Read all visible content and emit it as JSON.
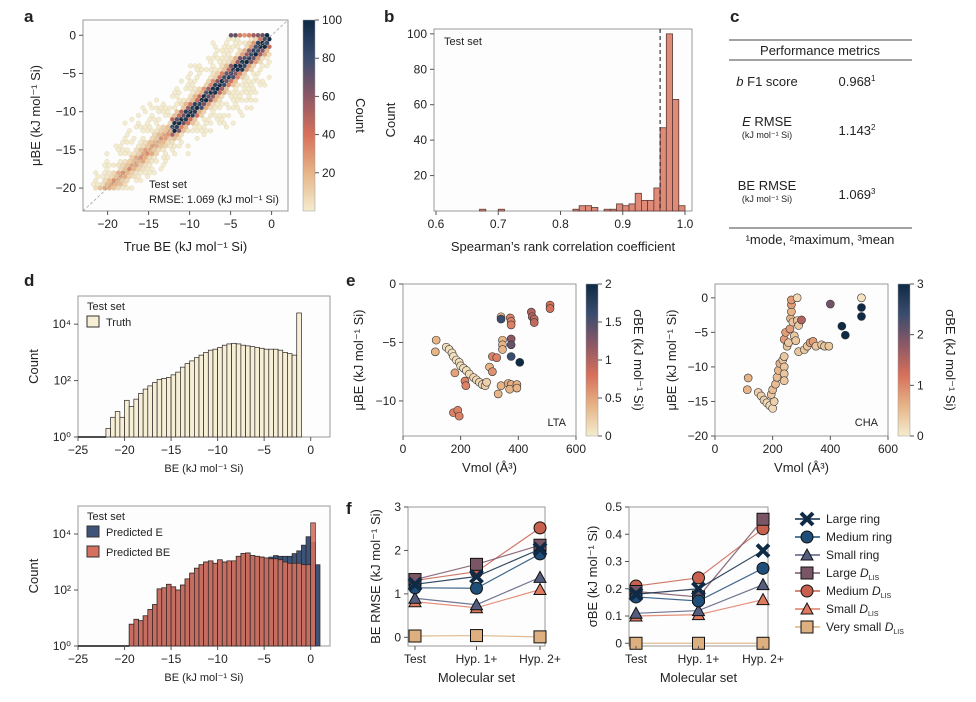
{
  "panel_labels": {
    "a": "a",
    "b": "b",
    "c": "c",
    "d": "d",
    "e": "e",
    "f": "f"
  },
  "colors": {
    "navy": "#0f2a45",
    "blue": "#1f4e79",
    "slate": "#565e80",
    "mauve": "#7a5566",
    "red": "#c8604f",
    "salmon": "#e07a5f",
    "tan": "#deb07f",
    "cream": "#f4eccf",
    "hist_edge": "#3a3030",
    "truth_fill": "#f6efd6"
  },
  "table": {
    "title": "Performance metrics",
    "rows": [
      {
        "label_italic": "b",
        "label": " F1 score",
        "sublabel": "",
        "value": "0.968",
        "sup": "1"
      },
      {
        "label_italic": "E",
        "label": "  RMSE",
        "sublabel": "(kJ mol⁻¹ Si)",
        "value": "1.143",
        "sup": "2"
      },
      {
        "label_italic": "",
        "label": "BE RMSE",
        "sublabel": "(kJ mol⁻¹ Si)",
        "value": "1.069",
        "sup": "3"
      }
    ],
    "footnote": "¹mode, ²maximum, ³mean"
  },
  "chart_data": [
    {
      "id": "a",
      "type": "heatmap",
      "subtype": "hexbin",
      "xlabel": "True BE (kJ mol⁻¹ Si)",
      "ylabel": "μBE (kJ mol⁻¹ Si)",
      "xlim": [
        -23,
        2
      ],
      "ylim": [
        -23,
        2
      ],
      "xticks": [
        -20,
        -15,
        -10,
        -5,
        0
      ],
      "yticks": [
        0,
        -5,
        -10,
        -15,
        -20
      ],
      "annotation": [
        "Test set",
        "RMSE: 1.069 (kJ mol⁻¹ Si)"
      ],
      "colorbar": {
        "label": "Count",
        "ticks": [
          20,
          40,
          60,
          80,
          100
        ],
        "range": [
          0,
          100
        ]
      },
      "diagonal": true,
      "density_ridge": {
        "x": [
          -20,
          -15,
          -12,
          -10,
          -7.5,
          -5,
          -2.5,
          0
        ],
        "y": [
          -19,
          -15,
          -12,
          -10,
          -7.5,
          -5,
          -2.5,
          0
        ],
        "peak_count": [
          5,
          20,
          80,
          100,
          100,
          100,
          100,
          100
        ]
      }
    },
    {
      "id": "b",
      "type": "bar",
      "subtype": "histogram",
      "xlabel": "Spearman’s rank correlation coefficient",
      "ylabel": "Count",
      "xlim": [
        0.6,
        1.0
      ],
      "ylim": [
        0,
        105
      ],
      "xticks": [
        0.6,
        0.7,
        0.8,
        0.9,
        1.0
      ],
      "yticks": [
        20,
        40,
        60,
        80,
        100
      ],
      "annotation": "Test set",
      "vline": 0.96,
      "bin_width": 0.01,
      "bins": [
        0.67,
        0.7,
        0.82,
        0.83,
        0.84,
        0.85,
        0.87,
        0.88,
        0.89,
        0.9,
        0.91,
        0.92,
        0.93,
        0.94,
        0.95,
        0.96,
        0.97,
        0.98,
        0.99
      ],
      "values": [
        1,
        1,
        1,
        3,
        3,
        2,
        1,
        1,
        4,
        3,
        4,
        10,
        6,
        6,
        13,
        47,
        100,
        63,
        3
      ]
    },
    {
      "id": "d-top",
      "type": "bar",
      "subtype": "histogram",
      "yscale": "log",
      "xlabel": "BE (kJ mol⁻¹ Si)",
      "ylabel": "Count",
      "xlim": [
        -25,
        1
      ],
      "ylim": [
        1,
        100000
      ],
      "xticks": [
        -25,
        -20,
        -15,
        -10,
        -5,
        0
      ],
      "yticks": [
        "10⁰",
        "10²",
        "10⁴"
      ],
      "legend": {
        "title": "Test set",
        "entries": [
          "Truth"
        ]
      },
      "bin_start": -22,
      "bin_width": 0.5,
      "series": [
        {
          "name": "Truth",
          "values": [
            2,
            5,
            8,
            5,
            20,
            12,
            22,
            35,
            50,
            65,
            85,
            110,
            120,
            130,
            160,
            200,
            300,
            400,
            500,
            650,
            800,
            1000,
            1200,
            1300,
            1500,
            1800,
            2000,
            2100,
            2000,
            1800,
            1700,
            1600,
            1500,
            1400,
            1300,
            1300,
            1300,
            1200,
            1000,
            900,
            800,
            25000
          ]
        }
      ]
    },
    {
      "id": "d-bottom",
      "type": "bar",
      "subtype": "histogram",
      "yscale": "log",
      "xlabel": "BE (kJ mol⁻¹ Si)",
      "ylabel": "Count",
      "xlim": [
        -25,
        1
      ],
      "ylim": [
        1,
        100000
      ],
      "xticks": [
        -25,
        -20,
        -15,
        -10,
        -5,
        0
      ],
      "yticks": [
        "10⁰",
        "10²",
        "10⁴"
      ],
      "legend": {
        "title": "Test set",
        "entries": [
          "Predicted E",
          "Predicted BE"
        ]
      },
      "bin_start": -19.5,
      "bin_width": 0.5,
      "series": [
        {
          "name": "Predicted E",
          "values": [
            6,
            9,
            8,
            12,
            20,
            30,
            110,
            120,
            160,
            130,
            100,
            150,
            250,
            400,
            600,
            800,
            1000,
            1100,
            900,
            1200,
            1000,
            1100,
            1100,
            1600,
            2000,
            2100,
            1700,
            1600,
            1500,
            1400,
            1500,
            1700,
            1600,
            1600,
            1600,
            2000,
            2500,
            4000,
            8000,
            5000,
            800
          ]
        },
        {
          "name": "Predicted BE",
          "values": [
            6,
            9,
            8,
            12,
            20,
            30,
            110,
            120,
            160,
            130,
            100,
            150,
            250,
            400,
            600,
            800,
            1000,
            1100,
            900,
            1200,
            1000,
            1100,
            1100,
            1600,
            2000,
            2100,
            1700,
            1600,
            1500,
            1400,
            1300,
            1300,
            1200,
            1000,
            900,
            900,
            900,
            800,
            800,
            25000,
            0
          ]
        }
      ]
    },
    {
      "id": "e-LTA",
      "type": "scatter",
      "annotation": "LTA",
      "xlabel": "Vmol (Å³)",
      "ylabel": "μBE (kJ mol⁻¹ Si)",
      "xlim": [
        0,
        600
      ],
      "ylim": [
        -13,
        0
      ],
      "xticks": [
        0,
        200,
        400,
        600
      ],
      "yticks": [
        0,
        -5,
        -10
      ],
      "colorbar": {
        "label": "σBE (kJ mol⁻¹ Si)",
        "range": [
          0,
          2.0
        ],
        "ticks": [
          0,
          0.5,
          1.0,
          1.5,
          2.0
        ]
      },
      "points": [
        [
          115,
          -4.8,
          0.4
        ],
        [
          112,
          -5.8,
          0.4
        ],
        [
          150,
          -5.4,
          0.1
        ],
        [
          160,
          -5.6,
          0.1
        ],
        [
          170,
          -5.9,
          0.1
        ],
        [
          175,
          -6.2,
          0.1
        ],
        [
          185,
          -6.5,
          0.1
        ],
        [
          195,
          -6.7,
          0.1
        ],
        [
          200,
          -7.0,
          0.1
        ],
        [
          210,
          -7.2,
          0.1
        ],
        [
          220,
          -7.4,
          0.1
        ],
        [
          230,
          -7.7,
          0.15
        ],
        [
          245,
          -8.0,
          0.15
        ],
        [
          255,
          -8.2,
          0.15
        ],
        [
          265,
          -8.4,
          0.15
        ],
        [
          275,
          -8.6,
          0.15
        ],
        [
          285,
          -8.7,
          0.2
        ],
        [
          290,
          -8.4,
          0.2
        ],
        [
          180,
          -7.6,
          0.5
        ],
        [
          215,
          -8.3,
          0.7
        ],
        [
          218,
          -8.7,
          0.7
        ],
        [
          300,
          -7.1,
          0.4
        ],
        [
          310,
          -6.2,
          0.7
        ],
        [
          325,
          -6.3,
          0.7
        ],
        [
          310,
          -7.5,
          0.6
        ],
        [
          330,
          -9.4,
          0.4
        ],
        [
          340,
          -8.7,
          0.4
        ],
        [
          365,
          -8.5,
          0.45
        ],
        [
          375,
          -8.6,
          0.45
        ],
        [
          370,
          -9.0,
          0.4
        ],
        [
          395,
          -8.6,
          0.4
        ],
        [
          395,
          -8.9,
          0.4
        ],
        [
          340,
          -2.8,
          0.4
        ],
        [
          340,
          -3.0,
          1.6
        ],
        [
          345,
          -4.8,
          0.4
        ],
        [
          345,
          -5.2,
          0.4
        ],
        [
          345,
          -5.6,
          0.4
        ],
        [
          372,
          -2.9,
          0.7
        ],
        [
          375,
          -3.2,
          0.7
        ],
        [
          375,
          -3.5,
          0.7
        ],
        [
          375,
          -4.7,
          1.2
        ],
        [
          375,
          -5.2,
          1.4
        ],
        [
          375,
          -6.2,
          1.6
        ],
        [
          405,
          -6.7,
          2.0
        ],
        [
          445,
          -2.4,
          1.0
        ],
        [
          448,
          -2.8,
          1.0
        ],
        [
          455,
          -3.0,
          0.9
        ],
        [
          455,
          -3.3,
          0.9
        ],
        [
          510,
          -1.8,
          0.8
        ],
        [
          510,
          -2.1,
          0.8
        ],
        [
          175,
          -11.0,
          0.7
        ],
        [
          190,
          -10.8,
          0.7
        ],
        [
          195,
          -11.3,
          0.7
        ]
      ]
    },
    {
      "id": "e-CHA",
      "type": "scatter",
      "annotation": "CHA",
      "xlabel": "Vmol (Å³)",
      "ylabel": "μBE (kJ mol⁻¹ Si)",
      "xlim": [
        0,
        600
      ],
      "ylim": [
        -20,
        2
      ],
      "xticks": [
        0,
        200,
        400,
        600
      ],
      "yticks": [
        0,
        -5,
        -10,
        -15,
        -20
      ],
      "colorbar": {
        "label": "σBE (kJ mol⁻¹ Si)",
        "range": [
          0,
          3
        ],
        "ticks": [
          0,
          1,
          2,
          3
        ]
      },
      "points": [
        [
          115,
          -11.6,
          0.6
        ],
        [
          112,
          -13.3,
          0.6
        ],
        [
          150,
          -13.7,
          0.3
        ],
        [
          160,
          -14.2,
          0.3
        ],
        [
          170,
          -14.8,
          0.3
        ],
        [
          180,
          -15.2,
          0.2
        ],
        [
          190,
          -15.6,
          0.2
        ],
        [
          200,
          -16.0,
          0.2
        ],
        [
          205,
          -15.0,
          0.3
        ],
        [
          195,
          -14.0,
          0.4
        ],
        [
          200,
          -13.3,
          0.5
        ],
        [
          210,
          -12.5,
          0.5
        ],
        [
          215,
          -11.5,
          0.5
        ],
        [
          220,
          -10.5,
          0.6
        ],
        [
          225,
          -9.5,
          0.6
        ],
        [
          235,
          -9.0,
          0.4
        ],
        [
          240,
          -8.5,
          0.4
        ],
        [
          240,
          -10.0,
          0.4
        ],
        [
          240,
          -11.0,
          0.4
        ],
        [
          240,
          -12.0,
          0.4
        ],
        [
          240,
          -6.0,
          0.8
        ],
        [
          245,
          -5.0,
          0.8
        ],
        [
          250,
          -7.0,
          0.4
        ],
        [
          255,
          -6.5,
          0.4
        ],
        [
          260,
          -4.5,
          0.8
        ],
        [
          262,
          -3.0,
          0.6
        ],
        [
          265,
          -2.0,
          0.6
        ],
        [
          265,
          -1.0,
          0.8
        ],
        [
          265,
          -0.3,
          0.8
        ],
        [
          285,
          0.0,
          0.2
        ],
        [
          270,
          -3.5,
          0.4
        ],
        [
          285,
          -3.3,
          0.4
        ],
        [
          290,
          -4.0,
          0.4
        ],
        [
          300,
          -3.2,
          1.5
        ],
        [
          275,
          -5.5,
          0.4
        ],
        [
          280,
          -6.2,
          0.4
        ],
        [
          290,
          -7.8,
          0.4
        ],
        [
          310,
          -7.5,
          0.4
        ],
        [
          320,
          -7.0,
          0.4
        ],
        [
          330,
          -6.5,
          0.8
        ],
        [
          340,
          -6.3,
          0.8
        ],
        [
          350,
          -7.0,
          0.4
        ],
        [
          370,
          -6.8,
          0.4
        ],
        [
          380,
          -7.0,
          0.4
        ],
        [
          395,
          -7.0,
          0.4
        ],
        [
          400,
          -0.9,
          2.0
        ],
        [
          440,
          -4.1,
          3.0
        ],
        [
          452,
          -5.4,
          3.0
        ],
        [
          508,
          0.0,
          0.1
        ],
        [
          508,
          -1.4,
          3.0
        ],
        [
          508,
          -2.7,
          3.0
        ]
      ]
    },
    {
      "id": "f-left",
      "type": "line",
      "xlabel": "Molecular set",
      "ylabel": "BE RMSE (kJ mol⁻¹ Si)",
      "categories": [
        "Test",
        "Hyp. 1+",
        "Hyp. 2+"
      ],
      "ylim": [
        -0.2,
        3
      ],
      "yticks": [
        0,
        1,
        2,
        3
      ],
      "series": [
        {
          "name": "Large ring",
          "marker": "x",
          "color": "#0f2a45",
          "values": [
            1.22,
            1.4,
            2.03
          ]
        },
        {
          "name": "Medium ring",
          "marker": "o",
          "color": "#1f4e79",
          "values": [
            1.14,
            1.13,
            1.92
          ]
        },
        {
          "name": "Small ring",
          "marker": "^",
          "color": "#565e80",
          "values": [
            0.9,
            0.75,
            1.38
          ]
        },
        {
          "name": "Large DLIS",
          "marker": "s",
          "color": "#7a5566",
          "values": [
            1.33,
            1.68,
            2.12
          ]
        },
        {
          "name": "Medium DLIS",
          "marker": "o",
          "color": "#c8604f",
          "values": [
            1.31,
            1.51,
            2.52
          ]
        },
        {
          "name": "Small DLIS",
          "marker": "^",
          "color": "#e07a5f",
          "values": [
            0.82,
            0.68,
            1.1
          ]
        },
        {
          "name": "Very small DLIS",
          "marker": "s",
          "color": "#deb07f",
          "values": [
            0.03,
            0.04,
            0.01
          ]
        }
      ]
    },
    {
      "id": "f-right",
      "type": "line",
      "xlabel": "Molecular set",
      "ylabel": "σBE (kJ mol⁻¹ Si)",
      "categories": [
        "Test",
        "Hyp. 1+",
        "Hyp. 2+"
      ],
      "ylim": [
        -0.01,
        0.5
      ],
      "yticks": [
        0,
        0.1,
        0.2,
        0.3,
        0.4,
        0.5
      ],
      "series": [
        {
          "name": "Large ring",
          "marker": "x",
          "color": "#0f2a45",
          "values": [
            0.18,
            0.2,
            0.34
          ]
        },
        {
          "name": "Medium ring",
          "marker": "o",
          "color": "#1f4e79",
          "values": [
            0.17,
            0.155,
            0.275
          ]
        },
        {
          "name": "Small ring",
          "marker": "^",
          "color": "#565e80",
          "values": [
            0.11,
            0.12,
            0.215
          ]
        },
        {
          "name": "Large DLIS",
          "marker": "s",
          "color": "#7a5566",
          "values": [
            0.19,
            0.17,
            0.455
          ]
        },
        {
          "name": "Medium DLIS",
          "marker": "o",
          "color": "#c8604f",
          "values": [
            0.21,
            0.24,
            0.42
          ]
        },
        {
          "name": "Small DLIS",
          "marker": "^",
          "color": "#e07a5f",
          "values": [
            0.1,
            0.105,
            0.16
          ]
        },
        {
          "name": "Very small DLIS",
          "marker": "s",
          "color": "#deb07f",
          "values": [
            0.0,
            0.0,
            0.0
          ]
        }
      ],
      "legend_labels": [
        "Large ring",
        "Medium ring",
        "Small ring",
        "Large D",
        "Medium D",
        "Small D",
        "Very small D"
      ],
      "legend_subscript": "LIS"
    }
  ]
}
